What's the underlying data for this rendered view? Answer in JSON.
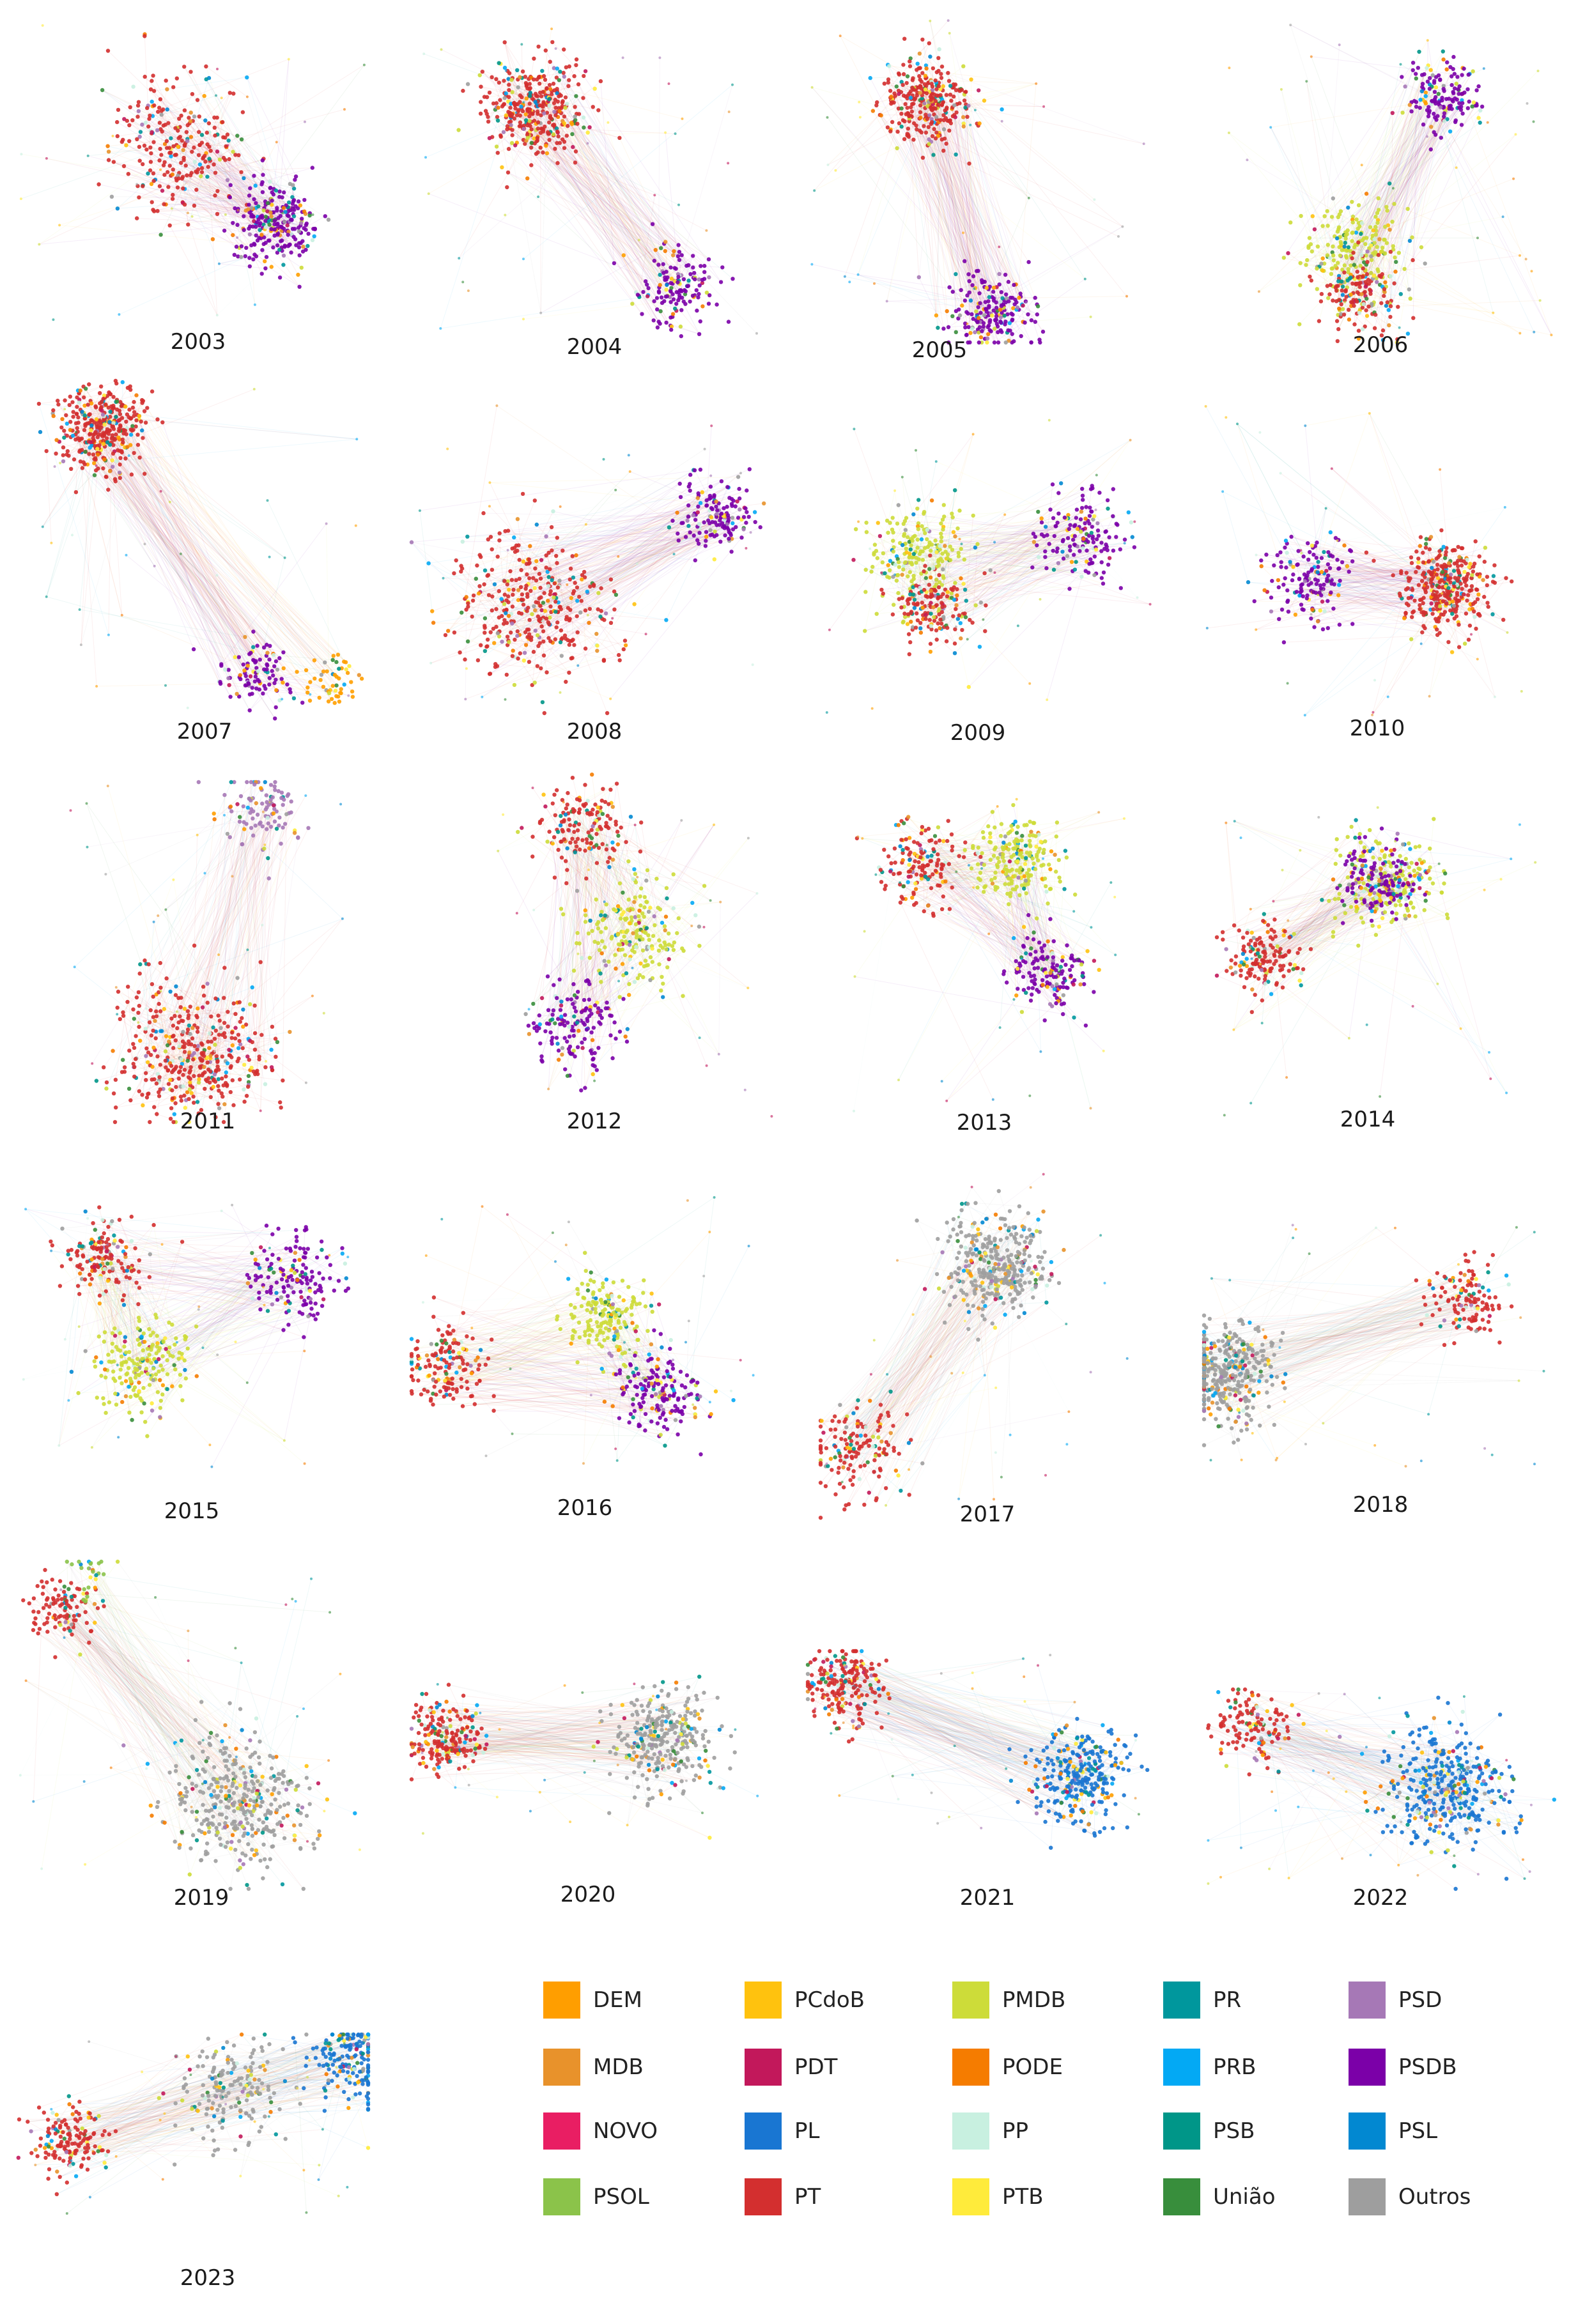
{
  "figure": {
    "panels": [
      {
        "year": "2003",
        "clusters": [
          {
            "party": "PT",
            "weight": 0.5,
            "spread": 1.0
          },
          {
            "party": "PSDB",
            "weight": 0.5,
            "spread": 0.5
          }
        ]
      },
      {
        "year": "2004",
        "clusters": [
          {
            "party": "PT",
            "weight": 0.7,
            "spread": 0.6
          },
          {
            "party": "PSDB",
            "weight": 0.3,
            "spread": 0.5
          }
        ]
      },
      {
        "year": "2005",
        "clusters": [
          {
            "party": "PT",
            "weight": 0.6,
            "spread": 0.5
          },
          {
            "party": "PSDB",
            "weight": 0.4,
            "spread": 0.5
          }
        ]
      },
      {
        "year": "2006",
        "clusters": [
          {
            "party": "PSDB",
            "weight": 0.3,
            "spread": 0.4
          },
          {
            "party": "PMDB",
            "weight": 0.4,
            "spread": 0.6
          },
          {
            "party": "PT",
            "weight": 0.3,
            "spread": 0.4
          }
        ]
      },
      {
        "year": "2007",
        "clusters": [
          {
            "party": "PT",
            "weight": 0.7,
            "spread": 0.5
          },
          {
            "party": "PSDB",
            "weight": 0.2,
            "spread": 0.4
          },
          {
            "party": "DEM",
            "weight": 0.1,
            "spread": 0.3
          }
        ]
      },
      {
        "year": "2008",
        "clusters": [
          {
            "party": "PT",
            "weight": 0.7,
            "spread": 1.2
          },
          {
            "party": "PSDB",
            "weight": 0.3,
            "spread": 0.4
          }
        ]
      },
      {
        "year": "2009",
        "clusters": [
          {
            "party": "PMDB",
            "weight": 0.4,
            "spread": 0.6
          },
          {
            "party": "PT",
            "weight": 0.3,
            "spread": 0.4
          },
          {
            "party": "PSDB",
            "weight": 0.3,
            "spread": 0.5
          }
        ]
      },
      {
        "year": "2010",
        "clusters": [
          {
            "party": "PSDB",
            "weight": 0.3,
            "spread": 0.5
          },
          {
            "party": "PT",
            "weight": 0.7,
            "spread": 0.6
          }
        ]
      },
      {
        "year": "2011",
        "clusters": [
          {
            "party": "PSD",
            "weight": 0.2,
            "spread": 0.4
          },
          {
            "party": "PT",
            "weight": 0.8,
            "spread": 1.2
          }
        ]
      },
      {
        "year": "2012",
        "clusters": [
          {
            "party": "PT",
            "weight": 0.3,
            "spread": 0.5
          },
          {
            "party": "PMDB",
            "weight": 0.4,
            "spread": 0.7
          },
          {
            "party": "PSDB",
            "weight": 0.3,
            "spread": 0.5
          }
        ]
      },
      {
        "year": "2013",
        "clusters": [
          {
            "party": "PT",
            "weight": 0.3,
            "spread": 0.5
          },
          {
            "party": "PMDB",
            "weight": 0.4,
            "spread": 0.6
          },
          {
            "party": "PSDB",
            "weight": 0.3,
            "spread": 0.4
          }
        ]
      },
      {
        "year": "2014",
        "clusters": [
          {
            "party": "PMDB",
            "weight": 0.4,
            "spread": 0.7
          },
          {
            "party": "PSDB",
            "weight": 0.3,
            "spread": 0.4
          },
          {
            "party": "PT",
            "weight": 0.3,
            "spread": 0.4
          }
        ]
      },
      {
        "year": "2015",
        "clusters": [
          {
            "party": "PT",
            "weight": 0.3,
            "spread": 0.4
          },
          {
            "party": "PSDB",
            "weight": 0.3,
            "spread": 0.5
          },
          {
            "party": "PMDB",
            "weight": 0.4,
            "spread": 0.6
          }
        ]
      },
      {
        "year": "2016",
        "clusters": [
          {
            "party": "PT",
            "weight": 0.3,
            "spread": 0.5
          },
          {
            "party": "PMDB",
            "weight": 0.35,
            "spread": 0.5
          },
          {
            "party": "PSDB",
            "weight": 0.35,
            "spread": 0.5
          }
        ]
      },
      {
        "year": "2017",
        "clusters": [
          {
            "party": "Outros",
            "weight": 0.7,
            "spread": 0.7
          },
          {
            "party": "PT",
            "weight": 0.3,
            "spread": 0.5
          }
        ]
      },
      {
        "year": "2018",
        "clusters": [
          {
            "party": "PT",
            "weight": 0.25,
            "spread": 0.4
          },
          {
            "party": "Outros",
            "weight": 0.75,
            "spread": 0.6
          }
        ]
      },
      {
        "year": "2019",
        "clusters": [
          {
            "party": "PT",
            "weight": 0.2,
            "spread": 0.4
          },
          {
            "party": "PSOL",
            "weight": 0.05,
            "spread": 0.3
          },
          {
            "party": "Outros",
            "weight": 0.75,
            "spread": 1.0
          }
        ]
      },
      {
        "year": "2020",
        "clusters": [
          {
            "party": "PT",
            "weight": 0.4,
            "spread": 0.4
          },
          {
            "party": "Outros",
            "weight": 0.6,
            "spread": 0.6
          }
        ]
      },
      {
        "year": "2021",
        "clusters": [
          {
            "party": "PT",
            "weight": 0.4,
            "spread": 0.4
          },
          {
            "party": "PL",
            "weight": 0.6,
            "spread": 0.6
          }
        ]
      },
      {
        "year": "2022",
        "clusters": [
          {
            "party": "PT",
            "weight": 0.25,
            "spread": 0.4
          },
          {
            "party": "PL",
            "weight": 0.75,
            "spread": 0.9
          }
        ]
      },
      {
        "year": "2023",
        "clusters": [
          {
            "party": "PT",
            "weight": 0.3,
            "spread": 0.4
          },
          {
            "party": "Outros",
            "weight": 0.35,
            "spread": 0.6
          },
          {
            "party": "PL",
            "weight": 0.35,
            "spread": 0.5
          }
        ]
      }
    ]
  },
  "legend": {
    "items": [
      {
        "label": "DEM",
        "color": "#FF9E00"
      },
      {
        "label": "PCdoB",
        "color": "#FFC20E"
      },
      {
        "label": "PMDB",
        "color": "#CDDC39"
      },
      {
        "label": "PR",
        "color": "#00979D"
      },
      {
        "label": "PSD",
        "color": "#A678B6"
      },
      {
        "label": "MDB",
        "color": "#E8922B"
      },
      {
        "label": "PDT",
        "color": "#C2185B"
      },
      {
        "label": "PODE",
        "color": "#F57C00"
      },
      {
        "label": "PRB",
        "color": "#03A9F4"
      },
      {
        "label": "PSDB",
        "color": "#7B00A8"
      },
      {
        "label": "NOVO",
        "color": "#E91E63"
      },
      {
        "label": "PL",
        "color": "#1976D2"
      },
      {
        "label": "PP",
        "color": "#C8F0E0"
      },
      {
        "label": "PSB",
        "color": "#009688"
      },
      {
        "label": "PSL",
        "color": "#0288D1"
      },
      {
        "label": "PSOL",
        "color": "#8BC34A"
      },
      {
        "label": "PT",
        "color": "#D32F2F"
      },
      {
        "label": "PTB",
        "color": "#FFEB3B"
      },
      {
        "label": "União",
        "color": "#388E3C"
      },
      {
        "label": "Outros",
        "color": "#9E9E9E"
      }
    ]
  }
}
